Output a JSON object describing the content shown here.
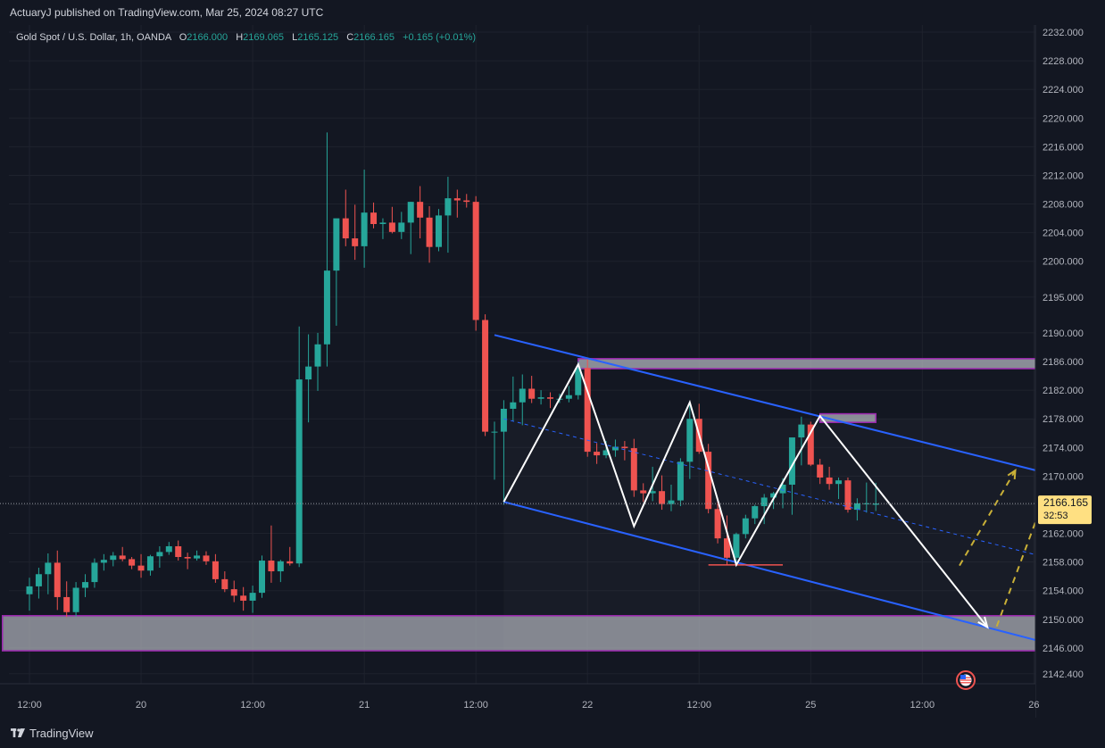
{
  "header": {
    "published": "ActuaryJ published on TradingView.com, Mar 25, 2024 08:27 UTC"
  },
  "legend": {
    "symbol": "Gold Spot / U.S. Dollar, 1h, OANDA",
    "o_label": "O",
    "o_value": "2166.000",
    "h_label": "H",
    "h_value": "2169.065",
    "l_label": "L",
    "l_value": "2165.125",
    "c_label": "C",
    "c_value": "2166.165",
    "change": "+0.165 (+0.01%)"
  },
  "price_label": {
    "price": "2166.165",
    "countdown": "32:53"
  },
  "footer": {
    "logo_text": "TradingView",
    "logo_icon": "tradingview-logo-icon"
  },
  "colors": {
    "background": "#131722",
    "up": "#26a69a",
    "down": "#ef5350",
    "channel": "#2962ff",
    "zone_fill": "#b2b5be",
    "zone_border": "#9c27b0",
    "pattern": "#ffffff",
    "projection": "#c9b037"
  },
  "chart_data": {
    "type": "candlestick",
    "title": "Gold Spot / U.S. Dollar, 1h, OANDA",
    "y_ticks": [
      "2142.400",
      "2146.000",
      "2150.000",
      "2154.000",
      "2158.000",
      "2162.000",
      "2166.000",
      "2170.000",
      "2174.000",
      "2178.000",
      "2182.000",
      "2186.000",
      "2190.000",
      "2195.000",
      "2200.000",
      "2204.000",
      "2208.000",
      "2212.000",
      "2216.000",
      "2220.000",
      "2224.000",
      "2228.000",
      "2232.000"
    ],
    "x_ticks": [
      {
        "label": "12:00",
        "idx": 0
      },
      {
        "label": "20",
        "idx": 12
      },
      {
        "label": "12:00",
        "idx": 24
      },
      {
        "label": "21",
        "idx": 36
      },
      {
        "label": "12:00",
        "idx": 48
      },
      {
        "label": "22",
        "idx": 60
      },
      {
        "label": "12:00",
        "idx": 72
      },
      {
        "label": "25",
        "idx": 84
      },
      {
        "label": "12:00",
        "idx": 96
      },
      {
        "label": "26",
        "idx": 108
      },
      {
        "label": "12:00",
        "idx": 120
      }
    ],
    "ylim": [
      2141,
      2233
    ],
    "last_price": 2166.165,
    "candles": [
      [
        2153.5,
        2155.8,
        2151.2,
        2154.6
      ],
      [
        2154.6,
        2157.2,
        2152.9,
        2156.3
      ],
      [
        2156.3,
        2159.2,
        2153.5,
        2157.9
      ],
      [
        2157.9,
        2159.6,
        2151.3,
        2153.1
      ],
      [
        2153.1,
        2155.3,
        2150.3,
        2151.0
      ],
      [
        2151.0,
        2155.2,
        2150.4,
        2154.4
      ],
      [
        2154.4,
        2156.3,
        2153.1,
        2155.2
      ],
      [
        2155.2,
        2158.5,
        2154.4,
        2157.9
      ],
      [
        2157.9,
        2159.1,
        2156.8,
        2158.3
      ],
      [
        2158.3,
        2159.4,
        2157.4,
        2158.9
      ],
      [
        2158.9,
        2160.1,
        2158.1,
        2158.4
      ],
      [
        2158.4,
        2158.7,
        2157.0,
        2157.5
      ],
      [
        2157.5,
        2159.1,
        2155.8,
        2156.8
      ],
      [
        2156.8,
        2159.0,
        2156.1,
        2158.8
      ],
      [
        2158.8,
        2160.2,
        2157.2,
        2159.4
      ],
      [
        2159.4,
        2160.8,
        2159.0,
        2160.2
      ],
      [
        2160.2,
        2161.0,
        2158.2,
        2158.7
      ],
      [
        2158.7,
        2159.3,
        2157.0,
        2158.5
      ],
      [
        2158.5,
        2159.6,
        2158.2,
        2158.9
      ],
      [
        2158.9,
        2159.5,
        2157.6,
        2158.1
      ],
      [
        2158.1,
        2159.1,
        2155.1,
        2155.6
      ],
      [
        2155.6,
        2156.7,
        2153.8,
        2154.2
      ],
      [
        2154.2,
        2155.4,
        2152.4,
        2153.3
      ],
      [
        2153.3,
        2154.5,
        2151.2,
        2152.6
      ],
      [
        2152.6,
        2154.7,
        2150.9,
        2153.7
      ],
      [
        2153.7,
        2158.9,
        2153.0,
        2158.2
      ],
      [
        2158.2,
        2163.1,
        2155.1,
        2156.7
      ],
      [
        2156.7,
        2158.3,
        2155.2,
        2158.1
      ],
      [
        2158.1,
        2160.1,
        2157.5,
        2157.8
      ],
      [
        2157.8,
        2190.9,
        2157.3,
        2183.5
      ],
      [
        2183.5,
        2189.8,
        2177.5,
        2185.3
      ],
      [
        2185.3,
        2190.0,
        2181.9,
        2188.4
      ],
      [
        2188.4,
        2218.0,
        2185.3,
        2198.7
      ],
      [
        2198.7,
        2205.4,
        2191.0,
        2206.0
      ],
      [
        2206.0,
        2210.0,
        2202.1,
        2203.2
      ],
      [
        2203.2,
        2207.9,
        2200.2,
        2202.1
      ],
      [
        2202.1,
        2212.8,
        2199.1,
        2206.8
      ],
      [
        2206.8,
        2208.2,
        2204.6,
        2205.2
      ],
      [
        2205.2,
        2206.0,
        2203.1,
        2205.4
      ],
      [
        2205.4,
        2207.6,
        2203.9,
        2204.1
      ],
      [
        2204.1,
        2206.9,
        2203.1,
        2205.4
      ],
      [
        2205.4,
        2208.3,
        2201.0,
        2208.3
      ],
      [
        2208.3,
        2210.5,
        2203.2,
        2206.1
      ],
      [
        2206.1,
        2207.7,
        2199.8,
        2202.0
      ],
      [
        2202.0,
        2207.3,
        2201.4,
        2206.4
      ],
      [
        2206.4,
        2211.8,
        2201.2,
        2208.8
      ],
      [
        2208.8,
        2210.0,
        2206.1,
        2208.5
      ],
      [
        2208.5,
        2209.4,
        2207.5,
        2208.3
      ],
      [
        2208.3,
        2209.1,
        2190.3,
        2191.8
      ],
      [
        2191.8,
        2192.6,
        2175.6,
        2176.2
      ],
      [
        2176.2,
        2177.6,
        2169.5,
        2176.2
      ],
      [
        2176.2,
        2180.6,
        2166.0,
        2179.4
      ],
      [
        2179.4,
        2183.9,
        2177.7,
        2180.3
      ],
      [
        2180.3,
        2184.2,
        2177.1,
        2182.2
      ],
      [
        2182.2,
        2184.0,
        2180.2,
        2180.8
      ],
      [
        2180.8,
        2182.0,
        2180.0,
        2181.0
      ],
      [
        2181.0,
        2181.7,
        2179.5,
        2180.8
      ],
      [
        2180.8,
        2181.5,
        2180.2,
        2180.8
      ],
      [
        2180.8,
        2182.6,
        2180.3,
        2181.3
      ],
      [
        2181.3,
        2186.0,
        2180.7,
        2185.1
      ],
      [
        2185.1,
        2186.4,
        2172.7,
        2173.4
      ],
      [
        2173.4,
        2174.6,
        2171.7,
        2172.9
      ],
      [
        2172.9,
        2174.9,
        2172.5,
        2173.6
      ],
      [
        2173.6,
        2175.1,
        2172.7,
        2174.1
      ],
      [
        2174.1,
        2174.9,
        2172.2,
        2173.9
      ],
      [
        2173.9,
        2175.2,
        2167.1,
        2168.0
      ],
      [
        2168.0,
        2169.0,
        2166.4,
        2167.6
      ],
      [
        2167.6,
        2171.3,
        2166.5,
        2167.9
      ],
      [
        2167.9,
        2170.1,
        2165.3,
        2166.1
      ],
      [
        2166.1,
        2168.8,
        2165.1,
        2166.6
      ],
      [
        2166.6,
        2172.5,
        2165.8,
        2172.0
      ],
      [
        2172.0,
        2180.4,
        2169.6,
        2178.0
      ],
      [
        2178.0,
        2180.1,
        2173.1,
        2173.4
      ],
      [
        2173.4,
        2174.5,
        2164.8,
        2165.4
      ],
      [
        2165.4,
        2166.8,
        2160.6,
        2161.3
      ],
      [
        2161.3,
        2164.5,
        2157.6,
        2158.6
      ],
      [
        2158.6,
        2162.1,
        2158.1,
        2161.9
      ],
      [
        2161.9,
        2164.6,
        2161.3,
        2164.1
      ],
      [
        2164.1,
        2166.0,
        2163.3,
        2165.8
      ],
      [
        2165.8,
        2167.5,
        2163.3,
        2167.0
      ],
      [
        2167.0,
        2167.8,
        2165.4,
        2167.6
      ],
      [
        2167.6,
        2169.7,
        2165.5,
        2168.8
      ],
      [
        2168.8,
        2175.2,
        2164.6,
        2175.4
      ],
      [
        2175.4,
        2178.3,
        2171.5,
        2177.2
      ],
      [
        2177.2,
        2177.6,
        2171.4,
        2171.6
      ],
      [
        2171.6,
        2172.4,
        2168.9,
        2169.8
      ],
      [
        2169.8,
        2171.3,
        2168.1,
        2168.9
      ],
      [
        2168.9,
        2169.8,
        2166.8,
        2169.4
      ],
      [
        2169.4,
        2169.8,
        2164.9,
        2165.3
      ],
      [
        2165.3,
        2166.9,
        2163.8,
        2166.2
      ],
      [
        2166.2,
        2169.1,
        2164.9,
        2166.2
      ],
      [
        2166.0,
        2169.065,
        2165.125,
        2166.165
      ]
    ],
    "annotations": {
      "resistance_zones": [
        {
          "x0_idx": 59,
          "x1_idx": 121,
          "y_top": 2186.4,
          "y_bottom": 2185.0
        },
        {
          "x0_idx": 85,
          "x1_idx": 91,
          "y_top": 2178.7,
          "y_bottom": 2177.5
        }
      ],
      "support_zone": {
        "x0_idx": -3,
        "x1_idx": 121,
        "y_top": 2150.5,
        "y_bottom": 2145.6
      },
      "support_line": {
        "x0_idx": 73,
        "x1_idx": 81,
        "y": 2157.6
      },
      "channel": {
        "upper": [
          [
            50,
            2189.7
          ],
          [
            123,
            2166.0
          ]
        ],
        "lower": [
          [
            51,
            2166.4
          ],
          [
            123,
            2142.1
          ]
        ],
        "mid": [
          [
            51,
            2178.0
          ],
          [
            123,
            2154.1
          ]
        ]
      },
      "zigzag": [
        [
          51,
          2166.4
        ],
        [
          59,
          2185.6
        ],
        [
          65,
          2163.0
        ],
        [
          71,
          2180.3
        ],
        [
          76,
          2157.6
        ],
        [
          85,
          2178.4
        ],
        [
          103,
          2148.9
        ]
      ],
      "projections": [
        [
          [
            100,
            2157.5
          ],
          [
            106,
            2170.8
          ]
        ],
        [
          [
            104,
            2149.0
          ],
          [
            109,
            2166.5
          ]
        ]
      ]
    }
  }
}
